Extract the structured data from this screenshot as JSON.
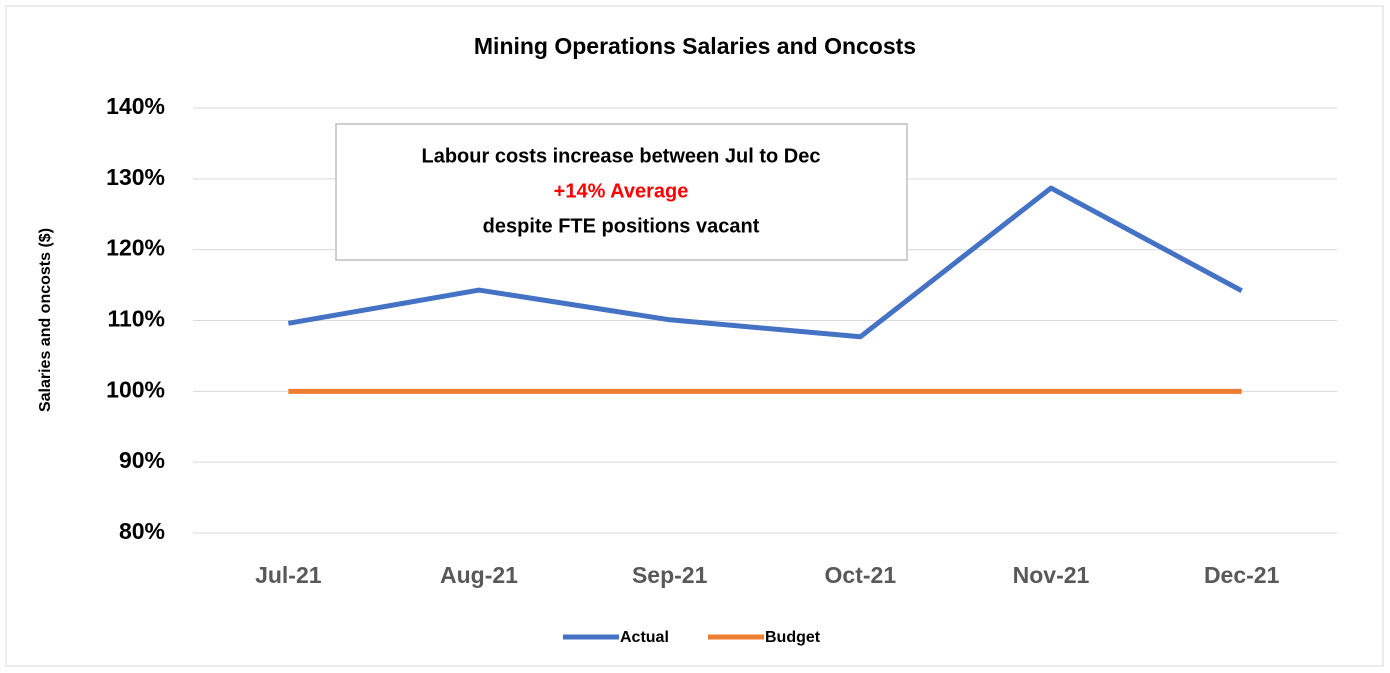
{
  "chart_data": {
    "type": "line",
    "title": "Mining Operations Salaries and Oncosts",
    "y_axis_label": "Salaries and oncosts ($)",
    "categories": [
      "Jul-21",
      "Aug-21",
      "Sep-21",
      "Oct-21",
      "Nov-21",
      "Dec-21"
    ],
    "series": [
      {
        "name": "Actual",
        "color": "#4472c4",
        "values": [
          109.6,
          114.3,
          110.1,
          107.7,
          128.7,
          114.2
        ]
      },
      {
        "name": "Budget",
        "color": "#ed7d31",
        "values": [
          100,
          100,
          100,
          100,
          100,
          100
        ]
      }
    ],
    "ylim": [
      80,
      140
    ],
    "yticks": [
      {
        "value": 80,
        "label": "80%"
      },
      {
        "value": 90,
        "label": "90%"
      },
      {
        "value": 100,
        "label": "100%"
      },
      {
        "value": 110,
        "label": "110%"
      },
      {
        "value": 120,
        "label": "120%"
      },
      {
        "value": 130,
        "label": "130%"
      },
      {
        "value": 140,
        "label": "140%"
      }
    ],
    "grid": true,
    "legend": "bottom",
    "annotation": [
      {
        "text": "Labour costs increase between Jul to Dec",
        "color": "#000000"
      },
      {
        "text": "+14% Average",
        "color": "#ff0000"
      },
      {
        "text": "despite FTE positions vacant",
        "color": "#000000"
      }
    ]
  }
}
